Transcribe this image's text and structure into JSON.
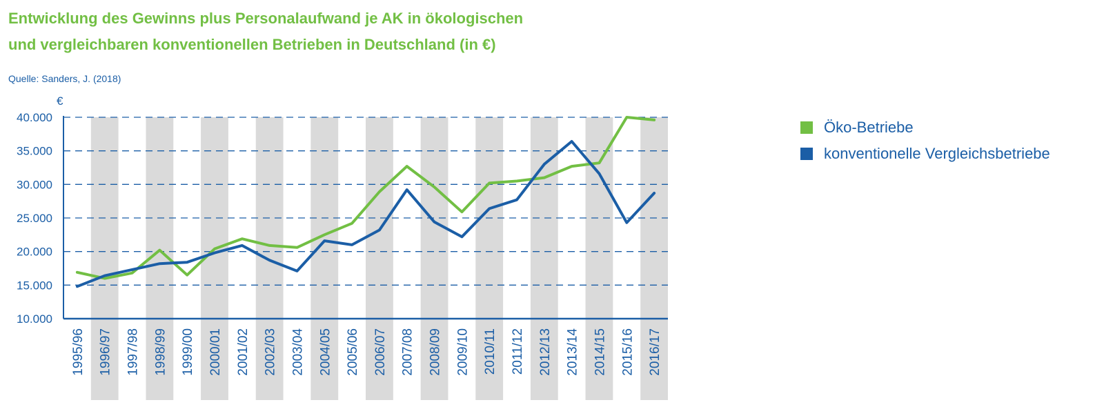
{
  "title_lines": [
    "Entwicklung des Gewinns plus Personalaufwand je AK in ökologischen",
    "und vergleichbaren konventionellen Betrieben in Deutschland (in €)"
  ],
  "source": "Quelle: Sanders, J. (2018)",
  "colors": {
    "oeko": "#72bf44",
    "konv": "#1b5ea6",
    "band": "#dadada",
    "grid": "#1b5ea6",
    "text": "#1b5ea6"
  },
  "chart_data": {
    "type": "line",
    "ylabel": "€",
    "ylim": [
      10000,
      40000
    ],
    "yticks": [
      10000,
      15000,
      20000,
      25000,
      30000,
      35000,
      40000
    ],
    "ytick_labels": [
      "10.000",
      "15.000",
      "20.000",
      "25.000",
      "30.000",
      "35.000",
      "40.000"
    ],
    "categories": [
      "1995/96",
      "1996/97",
      "1997/98",
      "1998/99",
      "1999/00",
      "2000/01",
      "2001/02",
      "2002/03",
      "2003/04",
      "2004/05",
      "2005/06",
      "2006/07",
      "2007/08",
      "2008/09",
      "2009/10",
      "2010/11",
      "2011/12",
      "2012/13",
      "2013/14",
      "2014/15",
      "2015/16",
      "2016/17"
    ],
    "grid": "horizontal dashed",
    "legend_position": "right",
    "series": [
      {
        "name": "Öko-Betriebe",
        "color": "#72bf44",
        "values": [
          16900,
          16000,
          16800,
          20200,
          16500,
          20400,
          21900,
          20900,
          20600,
          22500,
          24200,
          28900,
          32700,
          29600,
          25900,
          30200,
          30500,
          31000,
          32700,
          33200,
          40000,
          39600
        ]
      },
      {
        "name": "konventionelle Vergleichsbetriebe",
        "color": "#1b5ea6",
        "values": [
          14800,
          16400,
          17300,
          18200,
          18400,
          19800,
          20900,
          18700,
          17100,
          21600,
          21000,
          23200,
          29200,
          24400,
          22200,
          26400,
          27700,
          33000,
          36400,
          31600,
          24300,
          28700
        ]
      }
    ]
  }
}
